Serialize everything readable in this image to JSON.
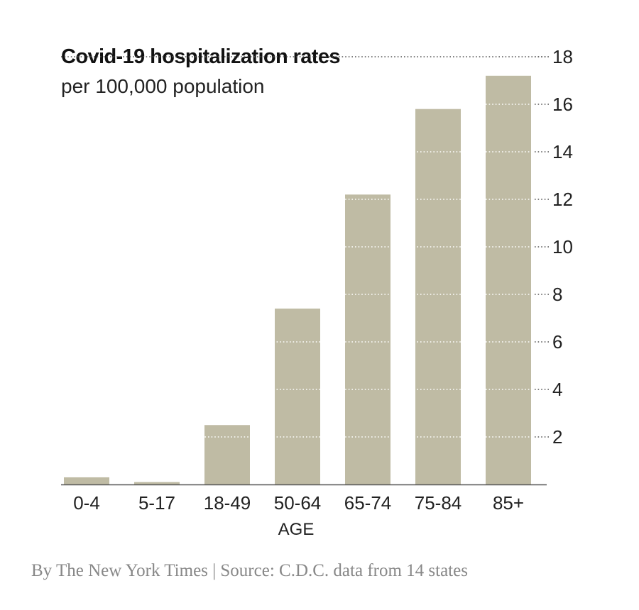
{
  "chart_data": {
    "type": "bar",
    "title": "Covid-19 hospitalization rates",
    "subtitle": "per 100,000 population",
    "xlabel": "AGE",
    "ylabel": "",
    "categories": [
      "0-4",
      "5-17",
      "18-49",
      "50-64",
      "65-74",
      "75-84",
      "85+"
    ],
    "values": [
      0.3,
      0.1,
      2.5,
      7.4,
      12.2,
      15.8,
      17.2
    ],
    "ylim": [
      0,
      18
    ],
    "yticks": [
      2,
      4,
      6,
      8,
      10,
      12,
      14,
      16,
      18
    ],
    "y_axis_position": "right",
    "gridlines": "dotted",
    "legend": "none",
    "bar_color": "#bfbba4",
    "credit": "By The New York Times | Source: C.D.C. data from 14 states"
  }
}
